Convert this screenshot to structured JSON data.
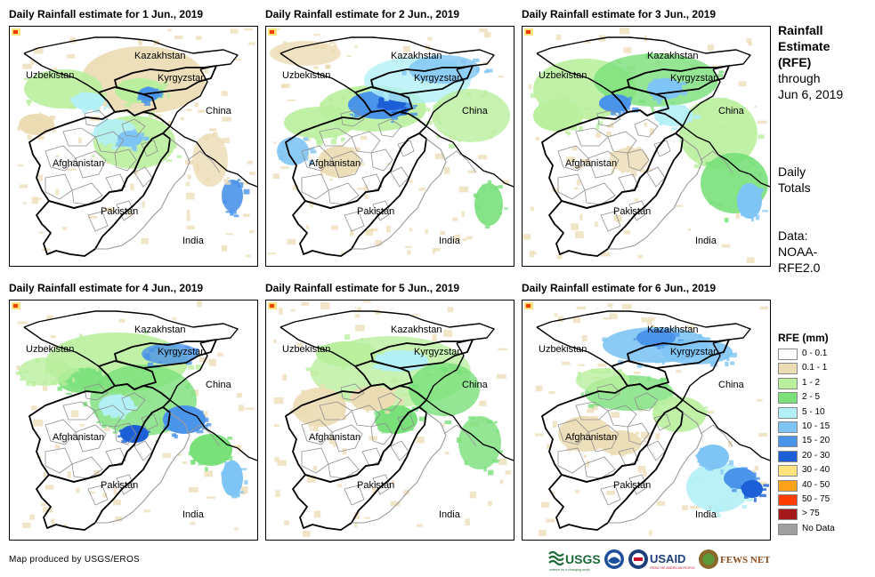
{
  "panels": [
    {
      "title": "Daily Rainfall estimate for 1 Jun., 2019"
    },
    {
      "title": "Daily Rainfall estimate for 2 Jun., 2019"
    },
    {
      "title": "Daily Rainfall estimate for 3 Jun., 2019"
    },
    {
      "title": "Daily Rainfall estimate for 4 Jun., 2019"
    },
    {
      "title": "Daily Rainfall estimate for 5 Jun., 2019"
    },
    {
      "title": "Daily Rainfall estimate for 6 Jun., 2019"
    }
  ],
  "map_labels": {
    "kazakhstan": "Kazakhstan",
    "uzbekistan": "Uzbekistan",
    "kyrgyzstan": "Kyrgyzstan",
    "china": "China",
    "afghanistan": "Afghanistan",
    "pakistan": "Pakistan",
    "india": "India"
  },
  "sidebar": {
    "heading_line1": "Rainfall",
    "heading_line2": "Estimate",
    "heading_line3": "(RFE)",
    "through": "through",
    "date": "Jun 6, 2019",
    "daily": "Daily",
    "totals": "Totals",
    "data_label": "Data:",
    "source_line1": "NOAA-",
    "source_line2": "RFE2.0"
  },
  "legend": {
    "title": "RFE (mm)",
    "items": [
      {
        "label": "0 - 0.1",
        "color": "#ffffff"
      },
      {
        "label": "0.1 - 1",
        "color": "#ecdcb4"
      },
      {
        "label": "1 - 2",
        "color": "#b9ef9d"
      },
      {
        "label": "2 - 5",
        "color": "#79e07a"
      },
      {
        "label": "5 - 10",
        "color": "#b2f0f6"
      },
      {
        "label": "10 - 15",
        "color": "#7ec4f4"
      },
      {
        "label": "15 - 20",
        "color": "#4a94ea"
      },
      {
        "label": "20 - 30",
        "color": "#1d5fd6"
      },
      {
        "label": "30 - 40",
        "color": "#ffe37c"
      },
      {
        "label": "40 - 50",
        "color": "#ffa21a"
      },
      {
        "label": "50 - 75",
        "color": "#ff3d00"
      },
      {
        "label": "> 75",
        "color": "#a3191c"
      },
      {
        "label": "No Data",
        "color": "#a0a0a0"
      }
    ]
  },
  "credit": "Map produced by USGS/EROS",
  "logos": {
    "usgs": "USGS",
    "usgs_tagline": "science for a changing world",
    "usaid": "USAID",
    "usaid_tagline": "FROM THE AMERICAN PEOPLE",
    "fews": "FEWS NET"
  }
}
